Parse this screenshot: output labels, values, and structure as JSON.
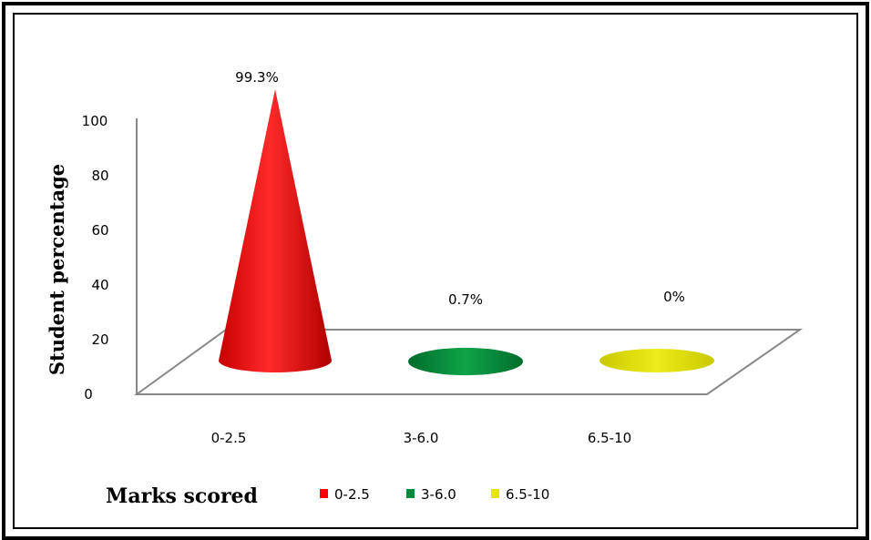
{
  "chart_data": {
    "type": "bar",
    "style": "3d-cone",
    "categories": [
      "0-2.5",
      "3-6.0",
      "6.5-10"
    ],
    "values": [
      99.3,
      0.7,
      0
    ],
    "data_labels": [
      "99.3%",
      "0.7%",
      "0%"
    ],
    "colors": [
      "#ff0000",
      "#008a3a",
      "#e6e600"
    ],
    "ylabel": "Student percentage",
    "xlabel": "Marks scored",
    "ylim": [
      0,
      100
    ],
    "yticks": [
      "0",
      "20",
      "40",
      "60",
      "80",
      "100"
    ],
    "legend": {
      "placement": "bottom",
      "entries": [
        "0-2.5",
        "3-6.0",
        "6.5-10"
      ]
    },
    "grid": false
  }
}
